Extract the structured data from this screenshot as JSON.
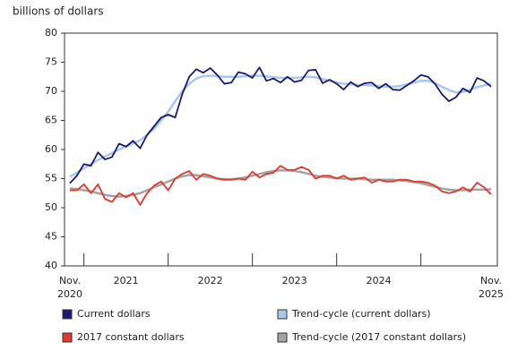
{
  "chart_data": {
    "type": "line",
    "y_label": "billions of dollars",
    "categories": [
      "Nov.\n2020",
      null,
      null,
      null,
      null,
      null,
      null,
      null,
      "2021",
      null,
      null,
      null,
      null,
      null,
      null,
      null,
      null,
      null,
      null,
      null,
      "2022",
      null,
      null,
      null,
      null,
      null,
      null,
      null,
      null,
      null,
      null,
      null,
      "2023",
      null,
      null,
      null,
      null,
      null,
      null,
      null,
      null,
      null,
      null,
      null,
      "2024",
      null,
      null,
      null,
      null,
      null,
      null,
      null,
      null,
      null,
      null,
      null,
      null,
      null,
      null,
      null,
      "Nov.\n2025"
    ],
    "ylim": [
      40,
      80
    ],
    "yticks": [
      40,
      45,
      50,
      55,
      60,
      65,
      70,
      75,
      80
    ],
    "series": [
      {
        "name": "Current dollars",
        "color": "#1b1a72",
        "values": [
          54.2,
          55.5,
          57.5,
          57.2,
          59.5,
          58.3,
          58.7,
          61.0,
          60.5,
          61.5,
          60.2,
          62.5,
          64.0,
          65.5,
          66.0,
          65.5,
          69.5,
          72.5,
          73.8,
          73.2,
          74.0,
          72.8,
          71.3,
          71.5,
          73.3,
          73.0,
          72.3,
          74.1,
          71.8,
          72.2,
          71.5,
          72.5,
          71.6,
          71.9,
          73.6,
          73.7,
          71.4,
          72.0,
          71.3,
          70.3,
          71.6,
          70.8,
          71.4,
          71.5,
          70.5,
          71.3,
          70.3,
          70.2,
          71.0,
          71.8,
          72.8,
          72.5,
          71.3,
          69.5,
          68.3,
          69.0,
          70.5,
          69.8,
          72.3,
          71.8,
          70.8
        ]
      },
      {
        "name": "Trend-cycle (current dollars)",
        "color": "#a6c8ee",
        "values": [
          55.3,
          56.0,
          56.8,
          57.5,
          58.2,
          58.8,
          59.4,
          60.0,
          60.5,
          61.0,
          61.6,
          62.5,
          63.6,
          65.0,
          66.5,
          68.3,
          70.0,
          71.3,
          72.2,
          72.6,
          72.7,
          72.6,
          72.5,
          72.5,
          72.5,
          72.6,
          72.7,
          72.7,
          72.6,
          72.4,
          72.3,
          72.3,
          72.3,
          72.4,
          72.5,
          72.4,
          72.1,
          71.8,
          71.5,
          71.3,
          71.2,
          71.1,
          71.1,
          71.0,
          70.9,
          70.8,
          70.8,
          70.9,
          71.2,
          71.5,
          71.8,
          71.8,
          71.4,
          70.8,
          70.2,
          69.8,
          69.9,
          70.3,
          70.7,
          71.0,
          71.3
        ]
      },
      {
        "name": "2017 constant dollars",
        "color": "#e2392e",
        "values": [
          53.0,
          53.0,
          54.0,
          52.5,
          54.0,
          51.5,
          51.0,
          52.5,
          51.8,
          52.5,
          50.5,
          52.5,
          53.8,
          54.5,
          53.0,
          55.0,
          55.8,
          56.3,
          54.8,
          55.8,
          55.5,
          55.0,
          54.8,
          54.8,
          55.0,
          54.8,
          56.2,
          55.2,
          55.8,
          56.0,
          57.2,
          56.5,
          56.5,
          57.0,
          56.5,
          55.0,
          55.5,
          55.5,
          55.0,
          55.5,
          54.8,
          55.0,
          55.2,
          54.3,
          54.8,
          54.5,
          54.5,
          54.8,
          54.8,
          54.5,
          54.5,
          54.3,
          53.8,
          52.8,
          52.5,
          52.8,
          53.5,
          52.8,
          54.3,
          53.5,
          52.3
        ]
      },
      {
        "name": "Trend-cycle (2017 constant dollars)",
        "color": "#a3a3a3",
        "values": [
          53.3,
          53.2,
          53.0,
          52.8,
          52.5,
          52.2,
          52.0,
          51.9,
          52.0,
          52.2,
          52.5,
          53.0,
          53.5,
          54.0,
          54.5,
          55.0,
          55.4,
          55.6,
          55.6,
          55.4,
          55.2,
          55.0,
          54.9,
          54.9,
          55.0,
          55.2,
          55.5,
          55.8,
          56.1,
          56.3,
          56.4,
          56.4,
          56.3,
          56.1,
          55.8,
          55.5,
          55.3,
          55.2,
          55.1,
          55.0,
          55.0,
          55.0,
          54.9,
          54.8,
          54.8,
          54.8,
          54.8,
          54.7,
          54.6,
          54.4,
          54.2,
          53.9,
          53.6,
          53.3,
          53.1,
          53.0,
          53.0,
          53.1,
          53.1,
          53.1,
          53.2
        ]
      }
    ]
  }
}
